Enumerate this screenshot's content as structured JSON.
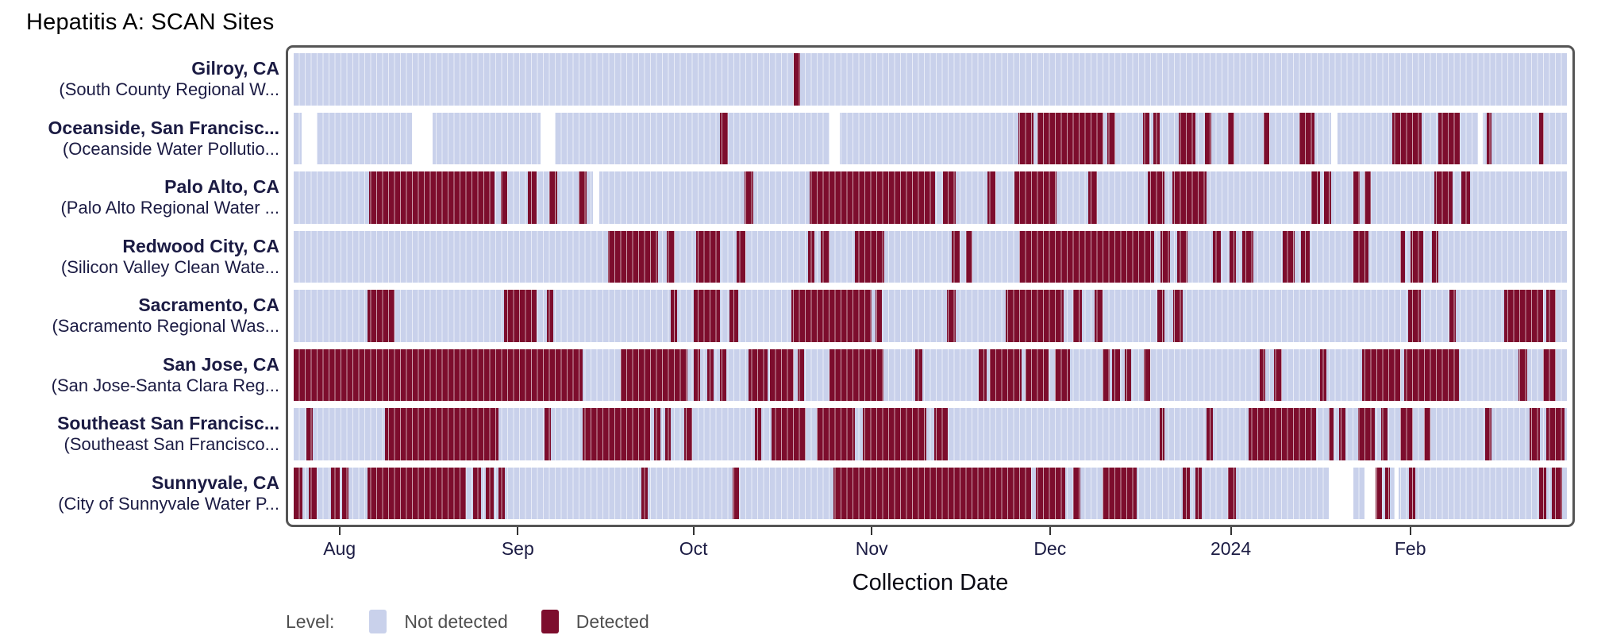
{
  "title": "Hepatitis A: SCAN Sites",
  "legend": {
    "label": "Level:",
    "items": [
      {
        "label": "Not detected",
        "color": "#c9d1eb"
      },
      {
        "label": "Detected",
        "color": "#7d0d2d"
      }
    ]
  },
  "chart_data": {
    "type": "heatmap",
    "subtype": "detection-status-timeline",
    "x_axis": {
      "title": "Collection Date",
      "ticks": [
        {
          "label": "Aug",
          "pos": 0.036
        },
        {
          "label": "Sep",
          "pos": 0.176
        },
        {
          "label": "Oct",
          "pos": 0.314
        },
        {
          "label": "Nov",
          "pos": 0.454
        },
        {
          "label": "Dec",
          "pos": 0.594
        },
        {
          "label": "2024",
          "pos": 0.736
        },
        {
          "label": "Feb",
          "pos": 0.877
        }
      ]
    },
    "value_encoding": "intervals are fractions [start,end] of the full x-axis range; detected = dark red, no_data = white gap, remainder = not detected (light blue)",
    "sites": [
      {
        "city": "Gilroy, CA",
        "facility": "(South County Regional W...",
        "detected": [
          [
            0.393,
            0.398
          ]
        ],
        "no_data": []
      },
      {
        "city": "Oceanside, San Francisc...",
        "facility": "(Oceanside Water Pollutio...",
        "detected": [
          [
            0.335,
            0.341
          ],
          [
            0.569,
            0.581
          ],
          [
            0.584,
            0.636
          ],
          [
            0.639,
            0.645
          ],
          [
            0.667,
            0.672
          ],
          [
            0.675,
            0.68
          ],
          [
            0.695,
            0.708
          ],
          [
            0.716,
            0.721
          ],
          [
            0.734,
            0.739
          ],
          [
            0.762,
            0.766
          ],
          [
            0.79,
            0.802
          ],
          [
            0.863,
            0.886
          ],
          [
            0.899,
            0.916
          ],
          [
            0.937,
            0.941
          ],
          [
            0.978,
            0.982
          ]
        ],
        "no_data": [
          [
            0.006,
            0.018
          ],
          [
            0.093,
            0.109
          ],
          [
            0.194,
            0.205
          ],
          [
            0.421,
            0.429
          ],
          [
            0.815,
            0.82
          ],
          [
            0.93,
            0.934
          ]
        ]
      },
      {
        "city": "Palo Alto, CA",
        "facility": "(Palo Alto Regional Water ...",
        "detected": [
          [
            0.059,
            0.158
          ],
          [
            0.163,
            0.168
          ],
          [
            0.184,
            0.191
          ],
          [
            0.201,
            0.207
          ],
          [
            0.224,
            0.23
          ],
          [
            0.354,
            0.361
          ],
          [
            0.405,
            0.504
          ],
          [
            0.51,
            0.52
          ],
          [
            0.545,
            0.551
          ],
          [
            0.566,
            0.599
          ],
          [
            0.624,
            0.631
          ],
          [
            0.671,
            0.684
          ],
          [
            0.69,
            0.717
          ],
          [
            0.799,
            0.806
          ],
          [
            0.809,
            0.815
          ],
          [
            0.832,
            0.837
          ],
          [
            0.841,
            0.846
          ],
          [
            0.896,
            0.91
          ],
          [
            0.917,
            0.924
          ]
        ],
        "no_data": [
          [
            0.235,
            0.24
          ]
        ]
      },
      {
        "city": "Redwood City, CA",
        "facility": "(Silicon Valley Clean Wate...",
        "detected": [
          [
            0.247,
            0.286
          ],
          [
            0.293,
            0.299
          ],
          [
            0.316,
            0.335
          ],
          [
            0.348,
            0.355
          ],
          [
            0.404,
            0.409
          ],
          [
            0.414,
            0.421
          ],
          [
            0.441,
            0.464
          ],
          [
            0.517,
            0.523
          ],
          [
            0.528,
            0.533
          ],
          [
            0.57,
            0.676
          ],
          [
            0.681,
            0.688
          ],
          [
            0.694,
            0.702
          ],
          [
            0.722,
            0.728
          ],
          [
            0.735,
            0.74
          ],
          [
            0.745,
            0.754
          ],
          [
            0.777,
            0.786
          ],
          [
            0.791,
            0.798
          ],
          [
            0.832,
            0.844
          ],
          [
            0.869,
            0.873
          ],
          [
            0.877,
            0.887
          ],
          [
            0.894,
            0.899
          ]
        ],
        "no_data": []
      },
      {
        "city": "Sacramento, CA",
        "facility": "(Sacramento Regional Was...",
        "detected": [
          [
            0.058,
            0.079
          ],
          [
            0.165,
            0.191
          ],
          [
            0.199,
            0.204
          ],
          [
            0.296,
            0.301
          ],
          [
            0.314,
            0.335
          ],
          [
            0.342,
            0.349
          ],
          [
            0.391,
            0.454
          ],
          [
            0.457,
            0.462
          ],
          [
            0.513,
            0.52
          ],
          [
            0.559,
            0.605
          ],
          [
            0.612,
            0.619
          ],
          [
            0.629,
            0.635
          ],
          [
            0.678,
            0.684
          ],
          [
            0.691,
            0.698
          ],
          [
            0.875,
            0.885
          ],
          [
            0.908,
            0.913
          ],
          [
            0.951,
            0.981
          ],
          [
            0.984,
            0.991
          ]
        ],
        "no_data": []
      },
      {
        "city": "San Jose, CA",
        "facility": "(San Jose-Santa Clara Reg...",
        "detected": [
          [
            0.0,
            0.227
          ],
          [
            0.257,
            0.309
          ],
          [
            0.314,
            0.319
          ],
          [
            0.325,
            0.33
          ],
          [
            0.335,
            0.34
          ],
          [
            0.357,
            0.372
          ],
          [
            0.374,
            0.393
          ],
          [
            0.396,
            0.401
          ],
          [
            0.421,
            0.463
          ],
          [
            0.488,
            0.494
          ],
          [
            0.538,
            0.544
          ],
          [
            0.547,
            0.572
          ],
          [
            0.575,
            0.593
          ],
          [
            0.598,
            0.61
          ],
          [
            0.635,
            0.641
          ],
          [
            0.643,
            0.649
          ],
          [
            0.653,
            0.658
          ],
          [
            0.668,
            0.673
          ],
          [
            0.759,
            0.763
          ],
          [
            0.77,
            0.776
          ],
          [
            0.806,
            0.811
          ],
          [
            0.839,
            0.869
          ],
          [
            0.872,
            0.915
          ],
          [
            0.962,
            0.969
          ],
          [
            0.981,
            0.991
          ]
        ],
        "no_data": []
      },
      {
        "city": "Southeast San Francisc...",
        "facility": "(Southeast San Francisco...",
        "detected": [
          [
            0.01,
            0.015
          ],
          [
            0.072,
            0.161
          ],
          [
            0.197,
            0.202
          ],
          [
            0.227,
            0.28
          ],
          [
            0.283,
            0.288
          ],
          [
            0.292,
            0.296
          ],
          [
            0.307,
            0.313
          ],
          [
            0.362,
            0.367
          ],
          [
            0.375,
            0.402
          ],
          [
            0.411,
            0.441
          ],
          [
            0.447,
            0.497
          ],
          [
            0.503,
            0.514
          ],
          [
            0.68,
            0.684
          ],
          [
            0.717,
            0.722
          ],
          [
            0.75,
            0.803
          ],
          [
            0.813,
            0.817
          ],
          [
            0.821,
            0.826
          ],
          [
            0.836,
            0.849
          ],
          [
            0.854,
            0.859
          ],
          [
            0.869,
            0.879
          ],
          [
            0.888,
            0.893
          ],
          [
            0.936,
            0.941
          ],
          [
            0.971,
            0.979
          ],
          [
            0.984,
            0.998
          ]
        ],
        "no_data": []
      },
      {
        "city": "Sunnyvale, CA",
        "facility": "(City of Sunnyvale Water P...",
        "detected": [
          [
            0.0,
            0.007
          ],
          [
            0.012,
            0.018
          ],
          [
            0.029,
            0.036
          ],
          [
            0.038,
            0.043
          ],
          [
            0.058,
            0.135
          ],
          [
            0.141,
            0.147
          ],
          [
            0.151,
            0.157
          ],
          [
            0.161,
            0.166
          ],
          [
            0.273,
            0.278
          ],
          [
            0.345,
            0.35
          ],
          [
            0.424,
            0.579
          ],
          [
            0.583,
            0.606
          ],
          [
            0.612,
            0.618
          ],
          [
            0.635,
            0.662
          ],
          [
            0.698,
            0.704
          ],
          [
            0.708,
            0.713
          ],
          [
            0.734,
            0.74
          ],
          [
            0.85,
            0.855
          ],
          [
            0.857,
            0.861
          ],
          [
            0.876,
            0.881
          ],
          [
            0.978,
            0.984
          ],
          [
            0.988,
            0.996
          ]
        ],
        "no_data": [
          [
            0.813,
            0.832
          ],
          [
            0.841,
            0.85
          ],
          [
            0.865,
            0.868
          ]
        ]
      }
    ]
  }
}
